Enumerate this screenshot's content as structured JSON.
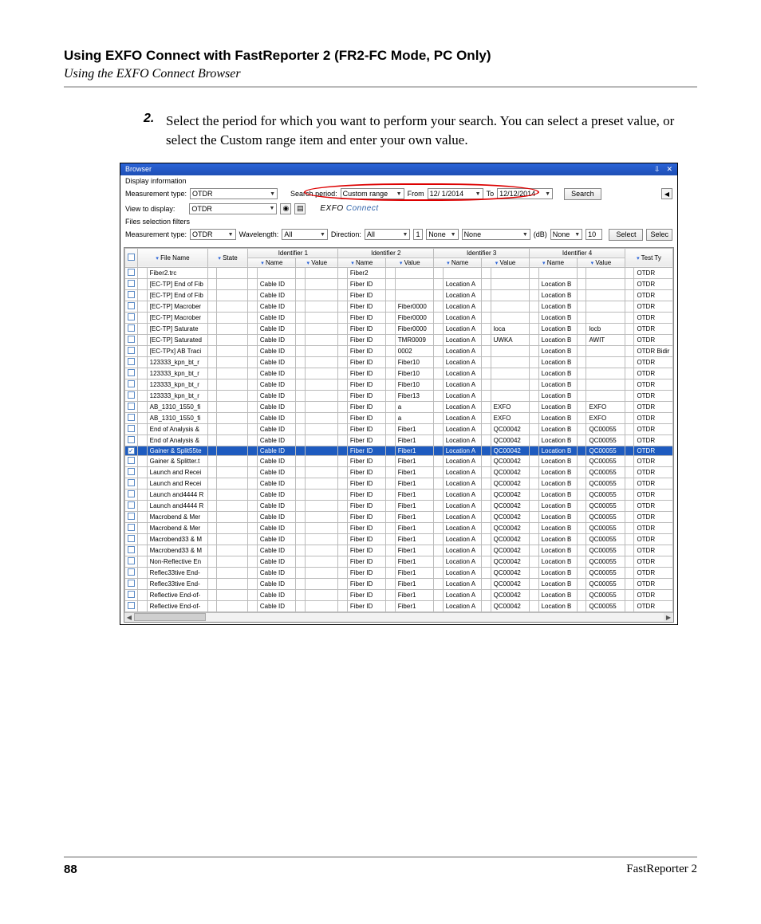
{
  "doc": {
    "title": "Using EXFO Connect with FastReporter 2 (FR2-FC Mode, PC Only)",
    "subtitle": "Using the EXFO Connect Browser",
    "step_num": "2.",
    "step_text": "Select the period for which you want to perform your search. You can select a preset value, or select the Custom range item and enter your own value.",
    "page_num": "88",
    "product": "FastReporter 2"
  },
  "ui": {
    "window_title": "Browser",
    "display_info": "Display information",
    "lbl_meas_type": "Measurement type:",
    "meas_type_val": "OTDR",
    "lbl_search_period": "Search period:",
    "search_period_val": "Custom range",
    "lbl_from": "From",
    "from_val": "12/ 1/2014",
    "lbl_to": "To",
    "to_val": "12/12/2014",
    "btn_search": "Search",
    "lbl_view": "View to display:",
    "view_val": "OTDR",
    "brand": "EXFO Connect",
    "files_filters": "Files selection filters",
    "lbl_wavelength": "Wavelength:",
    "wavelength_val": "All",
    "lbl_direction": "Direction:",
    "direction_val": "All",
    "none1": "None",
    "none2": "None",
    "db": "(dB)",
    "none3": "None",
    "num": "10",
    "btn_select": "Select",
    "btn_selec": "Selec"
  },
  "table": {
    "hdr_filename": "File Name",
    "hdr_state": "State",
    "hdr_id1": "Identifier 1",
    "hdr_id2": "Identifier 2",
    "hdr_id3": "Identifier 3",
    "hdr_id4": "Identifier 4",
    "hdr_name": "Name",
    "hdr_value": "Value",
    "hdr_test": "Test Ty",
    "rows": [
      {
        "f": "Fiber2.trc",
        "i1n": "",
        "i2n": "Fiber2",
        "i2v": "",
        "i3n": "",
        "i3v": "",
        "i4n": "",
        "i4v": "",
        "t": "OTDR"
      },
      {
        "f": "[EC-TP] End of Fib",
        "i1n": "Cable ID",
        "i2n": "Fiber ID",
        "i2v": "",
        "i3n": "Location A",
        "i3v": "",
        "i4n": "Location B",
        "i4v": "",
        "t": "OTDR"
      },
      {
        "f": "[EC-TP] End of Fib",
        "i1n": "Cable ID",
        "i2n": "Fiber ID",
        "i2v": "",
        "i3n": "Location A",
        "i3v": "",
        "i4n": "Location B",
        "i4v": "",
        "t": "OTDR"
      },
      {
        "f": "[EC-TP] Macrober",
        "i1n": "Cable ID",
        "i2n": "Fiber ID",
        "i2v": "Fiber0000",
        "i3n": "Location A",
        "i3v": "",
        "i4n": "Location B",
        "i4v": "",
        "t": "OTDR"
      },
      {
        "f": "[EC-TP] Macrober",
        "i1n": "Cable ID",
        "i2n": "Fiber ID",
        "i2v": "Fiber0000",
        "i3n": "Location A",
        "i3v": "",
        "i4n": "Location B",
        "i4v": "",
        "t": "OTDR"
      },
      {
        "f": "[EC-TP]  Saturate",
        "i1n": "Cable ID",
        "i2n": "Fiber ID",
        "i2v": "Fiber0000",
        "i3n": "Location A",
        "i3v": "loca",
        "i4n": "Location B",
        "i4v": "locb",
        "t": "OTDR"
      },
      {
        "f": "[EC-TP] Saturated",
        "i1n": "Cable ID",
        "i2n": "Fiber ID",
        "i2v": "TMR0009",
        "i3n": "Location A",
        "i3v": "UWKA",
        "i4n": "Location B",
        "i4v": "AWIT",
        "t": "OTDR"
      },
      {
        "f": "[EC-TPx] AB Traci",
        "i1n": "Cable ID",
        "i2n": "Fiber ID",
        "i2v": "0002",
        "i3n": "Location A",
        "i3v": "",
        "i4n": "Location B",
        "i4v": "",
        "t": "OTDR Bidir"
      },
      {
        "f": "123333_kpn_bt_r",
        "i1n": "Cable ID",
        "i2n": "Fiber ID",
        "i2v": "Fiber10",
        "i3n": "Location A",
        "i3v": "",
        "i4n": "Location B",
        "i4v": "",
        "t": "OTDR"
      },
      {
        "f": "123333_kpn_bt_r",
        "i1n": "Cable ID",
        "i2n": "Fiber ID",
        "i2v": "Fiber10",
        "i3n": "Location A",
        "i3v": "",
        "i4n": "Location B",
        "i4v": "",
        "t": "OTDR"
      },
      {
        "f": "123333_kpn_bt_r",
        "i1n": "Cable ID",
        "i2n": "Fiber ID",
        "i2v": "Fiber10",
        "i3n": "Location A",
        "i3v": "",
        "i4n": "Location B",
        "i4v": "",
        "t": "OTDR"
      },
      {
        "f": "123333_kpn_bt_r",
        "i1n": "Cable ID",
        "i2n": "Fiber ID",
        "i2v": "Fiber13",
        "i3n": "Location A",
        "i3v": "",
        "i4n": "Location B",
        "i4v": "",
        "t": "OTDR"
      },
      {
        "f": "AB_1310_1550_fi",
        "i1n": "Cable ID",
        "i2n": "Fiber ID",
        "i2v": "a",
        "i3n": "Location A",
        "i3v": "EXFO",
        "i4n": "Location B",
        "i4v": "EXFO",
        "t": "OTDR"
      },
      {
        "f": "AB_1310_1550_fi",
        "i1n": "Cable ID",
        "i2n": "Fiber ID",
        "i2v": "a",
        "i3n": "Location A",
        "i3v": "EXFO",
        "i4n": "Location B",
        "i4v": "EXFO",
        "t": "OTDR"
      },
      {
        "f": "End of Analysis &",
        "i1n": "Cable ID",
        "i2n": "Fiber ID",
        "i2v": "Fiber1",
        "i3n": "Location A",
        "i3v": "QC00042",
        "i4n": "Location B",
        "i4v": "QC00055",
        "t": "OTDR"
      },
      {
        "f": "End of Analysis &",
        "i1n": "Cable ID",
        "i2n": "Fiber ID",
        "i2v": "Fiber1",
        "i3n": "Location A",
        "i3v": "QC00042",
        "i4n": "Location B",
        "i4v": "QC00055",
        "t": "OTDR"
      },
      {
        "f": "Gainer & Split55te",
        "i1n": "Cable ID",
        "i2n": "Fiber ID",
        "i2v": "Fiber1",
        "i3n": "Location A",
        "i3v": "QC00042",
        "i4n": "Location B",
        "i4v": "QC00055",
        "t": "OTDR",
        "sel": true
      },
      {
        "f": "Gainer & Splitter.t",
        "i1n": "Cable ID",
        "i2n": "Fiber ID",
        "i2v": "Fiber1",
        "i3n": "Location A",
        "i3v": "QC00042",
        "i4n": "Location B",
        "i4v": "QC00055",
        "t": "OTDR"
      },
      {
        "f": "Launch and Recei",
        "i1n": "Cable ID",
        "i2n": "Fiber ID",
        "i2v": "Fiber1",
        "i3n": "Location A",
        "i3v": "QC00042",
        "i4n": "Location B",
        "i4v": "QC00055",
        "t": "OTDR"
      },
      {
        "f": "Launch and Recei",
        "i1n": "Cable ID",
        "i2n": "Fiber ID",
        "i2v": "Fiber1",
        "i3n": "Location A",
        "i3v": "QC00042",
        "i4n": "Location B",
        "i4v": "QC00055",
        "t": "OTDR"
      },
      {
        "f": "Launch and4444 R",
        "i1n": "Cable ID",
        "i2n": "Fiber ID",
        "i2v": "Fiber1",
        "i3n": "Location A",
        "i3v": "QC00042",
        "i4n": "Location B",
        "i4v": "QC00055",
        "t": "OTDR"
      },
      {
        "f": "Launch and4444 R",
        "i1n": "Cable ID",
        "i2n": "Fiber ID",
        "i2v": "Fiber1",
        "i3n": "Location A",
        "i3v": "QC00042",
        "i4n": "Location B",
        "i4v": "QC00055",
        "t": "OTDR"
      },
      {
        "f": "Macrobend & Mer",
        "i1n": "Cable ID",
        "i2n": "Fiber ID",
        "i2v": "Fiber1",
        "i3n": "Location A",
        "i3v": "QC00042",
        "i4n": "Location B",
        "i4v": "QC00055",
        "t": "OTDR"
      },
      {
        "f": "Macrobend & Mer",
        "i1n": "Cable ID",
        "i2n": "Fiber ID",
        "i2v": "Fiber1",
        "i3n": "Location A",
        "i3v": "QC00042",
        "i4n": "Location B",
        "i4v": "QC00055",
        "t": "OTDR"
      },
      {
        "f": "Macrobend33 & M",
        "i1n": "Cable ID",
        "i2n": "Fiber ID",
        "i2v": "Fiber1",
        "i3n": "Location A",
        "i3v": "QC00042",
        "i4n": "Location B",
        "i4v": "QC00055",
        "t": "OTDR"
      },
      {
        "f": "Macrobend33 & M",
        "i1n": "Cable ID",
        "i2n": "Fiber ID",
        "i2v": "Fiber1",
        "i3n": "Location A",
        "i3v": "QC00042",
        "i4n": "Location B",
        "i4v": "QC00055",
        "t": "OTDR"
      },
      {
        "f": "Non-Reflective En",
        "i1n": "Cable ID",
        "i2n": "Fiber ID",
        "i2v": "Fiber1",
        "i3n": "Location A",
        "i3v": "QC00042",
        "i4n": "Location B",
        "i4v": "QC00055",
        "t": "OTDR"
      },
      {
        "f": "Reflec33tive End-",
        "i1n": "Cable ID",
        "i2n": "Fiber ID",
        "i2v": "Fiber1",
        "i3n": "Location A",
        "i3v": "QC00042",
        "i4n": "Location B",
        "i4v": "QC00055",
        "t": "OTDR"
      },
      {
        "f": "Reflec33tive End-",
        "i1n": "Cable ID",
        "i2n": "Fiber ID",
        "i2v": "Fiber1",
        "i3n": "Location A",
        "i3v": "QC00042",
        "i4n": "Location B",
        "i4v": "QC00055",
        "t": "OTDR"
      },
      {
        "f": "Reflective End-of-",
        "i1n": "Cable ID",
        "i2n": "Fiber ID",
        "i2v": "Fiber1",
        "i3n": "Location A",
        "i3v": "QC00042",
        "i4n": "Location B",
        "i4v": "QC00055",
        "t": "OTDR"
      },
      {
        "f": "Reflective End-of-",
        "i1n": "Cable ID",
        "i2n": "Fiber ID",
        "i2v": "Fiber1",
        "i3n": "Location A",
        "i3v": "QC00042",
        "i4n": "Location B",
        "i4v": "QC00055",
        "t": "OTDR"
      }
    ]
  }
}
